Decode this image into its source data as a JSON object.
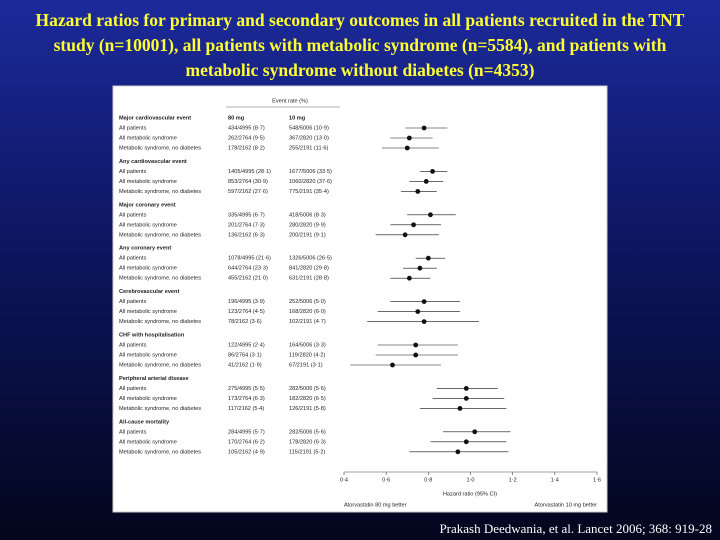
{
  "slide": {
    "title": "Hazard ratios for primary and secondary outcomes in all patients recruited in the TNT study (n=10001), all patients with metabolic syndrome (n=5584), and patients with metabolic syndrome without diabetes (n=4353)",
    "citation": "Prakash Deedwania, et al. Lancet 2006; 368: 919-28"
  },
  "chart_data": {
    "type": "forest",
    "header": "Event rate (%)",
    "col_80": "80 mg",
    "col_10": "10 mg",
    "xlabel": "Hazard ratio (95% CI)",
    "left_note": "Atorvastatin 80 mg better",
    "right_note": "Atorvastatin 10 mg better",
    "xlim": [
      0.4,
      1.6
    ],
    "xticks": [
      {
        "value": 0.4,
        "label": "0·4"
      },
      {
        "value": 0.6,
        "label": "0·6"
      },
      {
        "value": 0.8,
        "label": "0·8"
      },
      {
        "value": 1.0,
        "label": "1·0"
      },
      {
        "value": 1.2,
        "label": "1·2"
      },
      {
        "value": 1.4,
        "label": "1·4"
      },
      {
        "value": 1.6,
        "label": "1·6"
      }
    ],
    "color": "#111111",
    "groups": [
      {
        "name": "Major cardiovascular event",
        "rows": [
          {
            "label": "All patients",
            "rate_80": "434/4995 (8·7)",
            "rate_10": "548/5006 (10·9)",
            "hr": 0.78,
            "lo": 0.69,
            "hi": 0.89
          },
          {
            "label": "All metabolic syndrome",
            "rate_80": "262/2764 (9·5)",
            "rate_10": "367/2820 (13·0)",
            "hr": 0.71,
            "lo": 0.62,
            "hi": 0.82
          },
          {
            "label": "Metabolic syndrome, no diabetes",
            "rate_80": "178/2162 (8·2)",
            "rate_10": "255/2191 (11·6)",
            "hr": 0.7,
            "lo": 0.58,
            "hi": 0.85
          }
        ]
      },
      {
        "name": "Any cardiovascular event",
        "rows": [
          {
            "label": "All patients",
            "rate_80": "1405/4995 (28·1)",
            "rate_10": "1677/5006 (33·5)",
            "hr": 0.82,
            "lo": 0.76,
            "hi": 0.89
          },
          {
            "label": "All metabolic syndrome",
            "rate_80": "853/2764 (30·9)",
            "rate_10": "1060/2820 (37·6)",
            "hr": 0.79,
            "lo": 0.71,
            "hi": 0.87
          },
          {
            "label": "Metabolic syndrome, no diabetes",
            "rate_80": "597/2162 (27·6)",
            "rate_10": "775/2191 (35·4)",
            "hr": 0.75,
            "lo": 0.67,
            "hi": 0.84
          }
        ]
      },
      {
        "name": "Major coronary event",
        "rows": [
          {
            "label": "All patients",
            "rate_80": "335/4995 (6·7)",
            "rate_10": "418/5006 (8·3)",
            "hr": 0.81,
            "lo": 0.7,
            "hi": 0.93
          },
          {
            "label": "All metabolic syndrome",
            "rate_80": "201/2764 (7·3)",
            "rate_10": "280/2820 (9·9)",
            "hr": 0.73,
            "lo": 0.62,
            "hi": 0.86
          },
          {
            "label": "Metabolic syndrome, no diabetes",
            "rate_80": "136/2162 (6·3)",
            "rate_10": "200/2191 (9·1)",
            "hr": 0.69,
            "lo": 0.55,
            "hi": 0.85
          }
        ]
      },
      {
        "name": "Any coronary event",
        "rows": [
          {
            "label": "All patients",
            "rate_80": "1078/4995 (21·6)",
            "rate_10": "1326/5006 (26·5)",
            "hr": 0.8,
            "lo": 0.74,
            "hi": 0.88
          },
          {
            "label": "All metabolic syndrome",
            "rate_80": "644/2764 (23·3)",
            "rate_10": "841/2820 (29·8)",
            "hr": 0.76,
            "lo": 0.68,
            "hi": 0.84
          },
          {
            "label": "Metabolic syndrome, no diabetes",
            "rate_80": "455/2162 (21·0)",
            "rate_10": "631/2191 (28·8)",
            "hr": 0.71,
            "lo": 0.62,
            "hi": 0.81
          }
        ]
      },
      {
        "name": "Cerebrovascular event",
        "rows": [
          {
            "label": "All patients",
            "rate_80": "196/4995 (3·9)",
            "rate_10": "252/5006 (5·0)",
            "hr": 0.78,
            "lo": 0.62,
            "hi": 0.95
          },
          {
            "label": "All metabolic syndrome",
            "rate_80": "123/2764 (4·5)",
            "rate_10": "168/2820 (6·0)",
            "hr": 0.75,
            "lo": 0.56,
            "hi": 0.95
          },
          {
            "label": "Metabolic syndrome, no diabetes",
            "rate_80": "78/2162 (3·6)",
            "rate_10": "102/2191 (4·7)",
            "hr": 0.78,
            "lo": 0.51,
            "hi": 1.04
          }
        ]
      },
      {
        "name": "CHF with hospitalisation",
        "rows": [
          {
            "label": "All patients",
            "rate_80": "122/4995 (2·4)",
            "rate_10": "164/5006 (3·3)",
            "hr": 0.74,
            "lo": 0.56,
            "hi": 0.94
          },
          {
            "label": "All metabolic syndrome",
            "rate_80": "86/2764 (3·1)",
            "rate_10": "119/2820 (4·2)",
            "hr": 0.74,
            "lo": 0.55,
            "hi": 0.94
          },
          {
            "label": "Metabolic syndrome, no diabetes",
            "rate_80": "41/2162 (1·9)",
            "rate_10": "67/2191 (3·1)",
            "hr": 0.63,
            "lo": 0.43,
            "hi": 0.86
          }
        ]
      },
      {
        "name": "Peripheral arterial disease",
        "rows": [
          {
            "label": "All patients",
            "rate_80": "275/4995 (5·5)",
            "rate_10": "282/5006 (5·6)",
            "hr": 0.98,
            "lo": 0.84,
            "hi": 1.13
          },
          {
            "label": "All metabolic syndrome",
            "rate_80": "173/2764 (6·3)",
            "rate_10": "182/2820 (6·5)",
            "hr": 0.98,
            "lo": 0.82,
            "hi": 1.16
          },
          {
            "label": "Metabolic syndrome, no diabetes",
            "rate_80": "117/2162 (5·4)",
            "rate_10": "126/2191 (5·8)",
            "hr": 0.95,
            "lo": 0.76,
            "hi": 1.17
          }
        ]
      },
      {
        "name": "All-cause mortality",
        "rows": [
          {
            "label": "All patients",
            "rate_80": "284/4995 (5·7)",
            "rate_10": "282/5006 (5·6)",
            "hr": 1.02,
            "lo": 0.87,
            "hi": 1.19
          },
          {
            "label": "All metabolic syndrome",
            "rate_80": "170/2764 (6·2)",
            "rate_10": "178/2820 (6·3)",
            "hr": 0.98,
            "lo": 0.81,
            "hi": 1.17
          },
          {
            "label": "Metabolic syndrome, no diabetes",
            "rate_80": "105/2162 (4·9)",
            "rate_10": "115/2191 (5·2)",
            "hr": 0.94,
            "lo": 0.71,
            "hi": 1.18
          }
        ]
      }
    ]
  }
}
